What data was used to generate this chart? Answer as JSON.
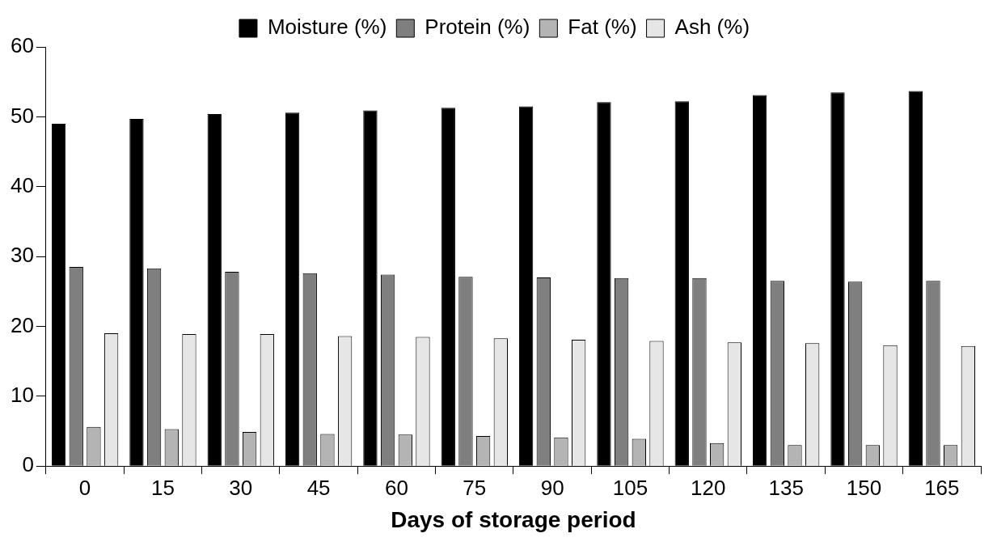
{
  "chart_data": {
    "type": "bar",
    "xlabel": "Days of storage period",
    "categories": [
      "0",
      "15",
      "30",
      "45",
      "60",
      "75",
      "90",
      "105",
      "120",
      "135",
      "150",
      "165"
    ],
    "series": [
      {
        "name": "Moisture (%)",
        "color": "#000000",
        "values": [
          49.0,
          49.7,
          50.4,
          50.6,
          50.9,
          51.3,
          51.5,
          52.1,
          52.2,
          53.1,
          53.5,
          53.7
        ]
      },
      {
        "name": "Protein (%)",
        "color": "#7f7f7f",
        "values": [
          28.5,
          28.3,
          27.8,
          27.6,
          27.4,
          27.1,
          27.0,
          26.9,
          26.9,
          26.5,
          26.4,
          26.5
        ]
      },
      {
        "name": "Fat (%)",
        "color": "#b4b4b4",
        "values": [
          5.6,
          5.3,
          4.9,
          4.6,
          4.5,
          4.3,
          4.1,
          3.9,
          3.3,
          3.0,
          3.0,
          3.0
        ]
      },
      {
        "name": "Ash (%)",
        "color": "#e6e6e6",
        "values": [
          19.0,
          18.9,
          18.9,
          18.6,
          18.5,
          18.3,
          18.1,
          17.9,
          17.7,
          17.6,
          17.3,
          17.2
        ]
      }
    ],
    "ylim": [
      0,
      60
    ],
    "yticks": [
      0,
      10,
      20,
      30,
      40,
      50,
      60
    ],
    "grid": false,
    "legend": "top"
  }
}
